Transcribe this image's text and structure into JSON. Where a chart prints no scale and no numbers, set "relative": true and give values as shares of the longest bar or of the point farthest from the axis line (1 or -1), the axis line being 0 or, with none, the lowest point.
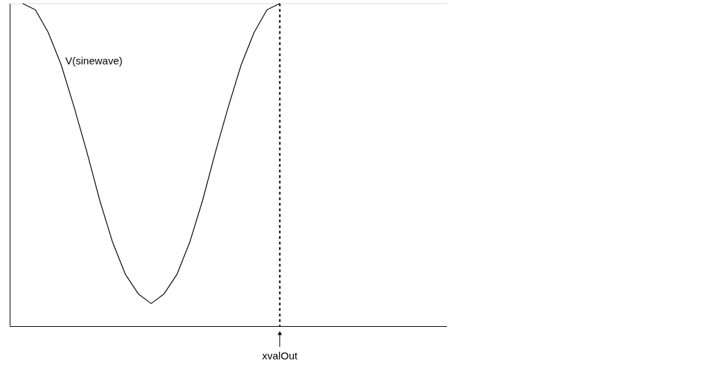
{
  "chart_data": {
    "type": "line",
    "relative": true,
    "grid": false,
    "categories": [
      null,
      null,
      null,
      null,
      null,
      null,
      null,
      null,
      null,
      null,
      null,
      null,
      null,
      null,
      null,
      null,
      null,
      null,
      null,
      null,
      null,
      null,
      null,
      null,
      null,
      null,
      null,
      null,
      null,
      null,
      null,
      null,
      null
    ],
    "series": [
      {
        "name": "V(sinewave)",
        "color": "#000000",
        "values": [
          1.0,
          0.98,
          0.91,
          0.81,
          0.68,
          0.54,
          0.39,
          0.26,
          0.16,
          0.1,
          0.07,
          0.1,
          0.16,
          0.26,
          0.39,
          0.54,
          0.68,
          0.81,
          0.91,
          0.98,
          1.0,
          null,
          null,
          null,
          null,
          null,
          null,
          null,
          null,
          null,
          null,
          null,
          null
        ]
      }
    ],
    "ref_lines": [
      {
        "axis": "x",
        "label": "xvalOut",
        "line_style": "dashed"
      }
    ]
  }
}
